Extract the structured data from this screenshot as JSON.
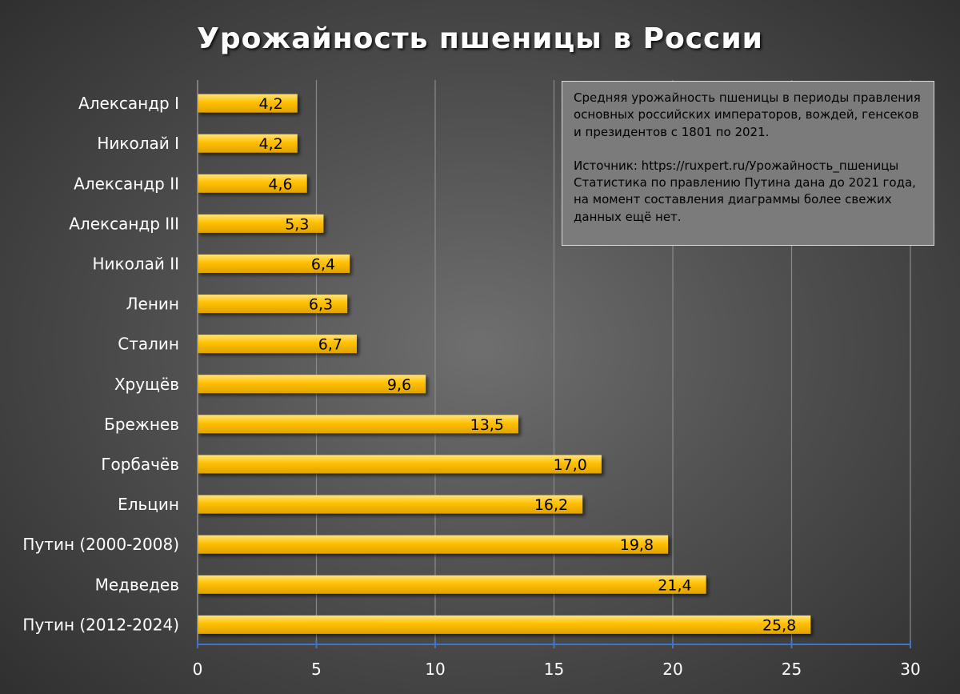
{
  "chart_data": {
    "type": "bar",
    "orientation": "horizontal",
    "title": "Урожайность пшеницы в России",
    "categories": [
      "Александр I",
      "Николай I",
      "Александр II",
      "Александр III",
      "Николай II",
      "Ленин",
      "Сталин",
      "Хрущёв",
      "Брежнев",
      "Горбачёв",
      "Ельцин",
      "Путин (2000-2008)",
      "Медведев",
      "Путин (2012-2024)"
    ],
    "values": [
      4.2,
      4.2,
      4.6,
      5.3,
      6.4,
      6.3,
      6.7,
      9.6,
      13.5,
      17.0,
      16.2,
      19.8,
      21.4,
      25.8
    ],
    "data_labels": [
      "4,2",
      "4,2",
      "4,6",
      "5,3",
      "6,4",
      "6,3",
      "6,7",
      "9,6",
      "13,5",
      "17,0",
      "16,2",
      "19,8",
      "21,4",
      "25,8"
    ],
    "xlim": [
      0,
      30
    ],
    "xticks": [
      0,
      5,
      10,
      15,
      20,
      25,
      30
    ],
    "grid": true,
    "legend": "none",
    "colors": {
      "bar": "#ffc000",
      "bar_highlight": "#ffe37a",
      "axis": "#4472c4",
      "grid": "#8a8a8a"
    }
  },
  "note": {
    "lines": [
      "Средняя урожайность пшеницы в периоды правления",
      "основных российских императоров, вождей, генсеков",
      "и президентов с 1801 по 2021."
    ],
    "source_lines": [
      "Источник: https://ruxpert.ru/Урожайность_пшеницы",
      "Статистика по правлению Путина дана до 2021 года,",
      "на момент составления диаграммы более свежих",
      "данных ещё нет."
    ]
  }
}
